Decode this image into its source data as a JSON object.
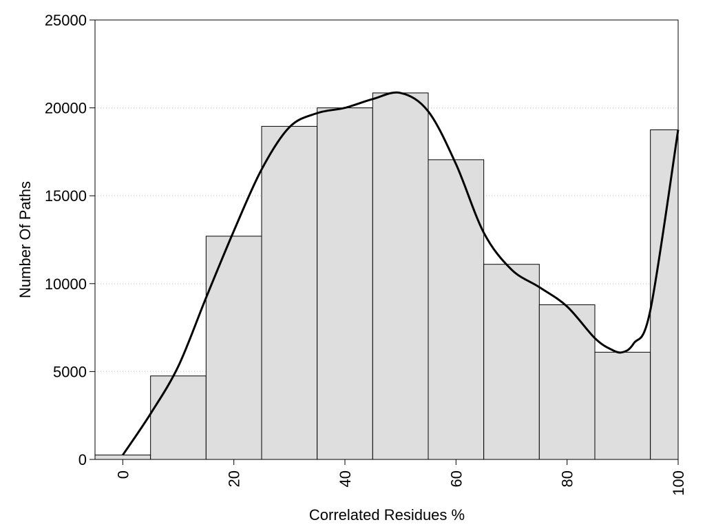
{
  "chart_data": {
    "type": "bar",
    "title": "",
    "xlabel": "Correlated Residues %",
    "ylabel": "Number Of Paths",
    "bin_width": 10,
    "categories": [
      0,
      10,
      20,
      30,
      40,
      50,
      60,
      70,
      80,
      90,
      100
    ],
    "values": [
      250,
      4750,
      12700,
      18950,
      20000,
      20850,
      17050,
      11100,
      8800,
      6100,
      18750
    ],
    "xlim": [
      -10,
      100
    ],
    "ylim": [
      0,
      25000
    ],
    "x_ticks": [
      0,
      20,
      40,
      60,
      80,
      100
    ],
    "x_tick_labels": [
      "0",
      "20",
      "40",
      "60",
      "80",
      "100"
    ],
    "y_ticks": [
      0,
      5000,
      10000,
      15000,
      20000,
      25000
    ],
    "y_tick_labels": [
      "0",
      "5000",
      "10000",
      "15000",
      "20000",
      "25000"
    ],
    "grid": "horizontal dotted",
    "smooth_curve": {
      "x": [
        0,
        5,
        10,
        15,
        20,
        25,
        30,
        35,
        40,
        45,
        50,
        55,
        60,
        65,
        70,
        75,
        80,
        85,
        88,
        90,
        92,
        95,
        100
      ],
      "y": [
        250,
        2600,
        5300,
        9200,
        13000,
        16500,
        18900,
        19700,
        20000,
        20500,
        20850,
        19800,
        16800,
        12900,
        10800,
        9800,
        8700,
        6900,
        6250,
        6100,
        6600,
        8500,
        18750
      ]
    },
    "colors": {
      "bar_fill": "#dedede",
      "bar_edge": "#000000",
      "curve": "#000000",
      "grid": "#c8c8c8"
    }
  }
}
